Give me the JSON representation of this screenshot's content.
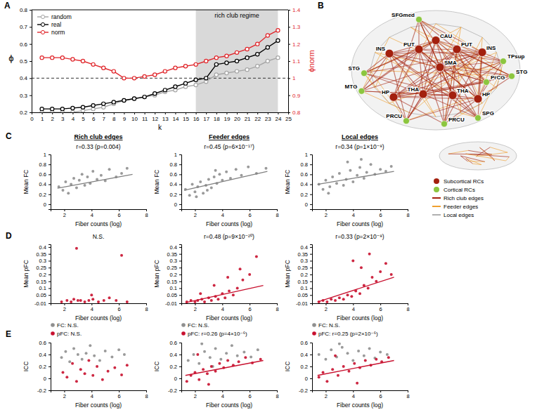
{
  "chart_data": [
    {
      "type": "line",
      "panel_label": "A",
      "xlabel": "k",
      "ylabel": "ϕ",
      "y2label": "ϕnorm",
      "xlim": [
        0,
        25
      ],
      "xticks": [
        0,
        1,
        2,
        3,
        4,
        5,
        6,
        7,
        8,
        9,
        10,
        11,
        12,
        13,
        14,
        15,
        16,
        17,
        18,
        19,
        20,
        21,
        22,
        23,
        24,
        25
      ],
      "ylim": [
        0.2,
        0.8
      ],
      "yticks": [
        0.2,
        0.3,
        0.4,
        0.5,
        0.6,
        0.7,
        0.8
      ],
      "y2lim": [
        0.8,
        1.4
      ],
      "y2ticks": [
        0.8,
        0.9,
        1,
        1.1,
        1.2,
        1.3,
        1.4
      ],
      "legend": "upper left",
      "x": [
        1,
        2,
        3,
        4,
        5,
        6,
        7,
        8,
        9,
        10,
        11,
        12,
        13,
        14,
        15,
        16,
        17,
        18,
        19,
        20,
        21,
        22,
        23,
        24
      ],
      "series": [
        {
          "name": "random",
          "color": "#a6a6a6",
          "marker": "circle",
          "values": [
            0.2,
            0.2,
            0.2,
            0.2,
            0.21,
            0.22,
            0.23,
            0.25,
            0.27,
            0.28,
            0.29,
            0.3,
            0.32,
            0.33,
            0.35,
            0.36,
            0.38,
            0.42,
            0.43,
            0.44,
            0.45,
            0.47,
            0.5,
            0.52
          ]
        },
        {
          "name": "real",
          "color": "#000000",
          "marker": "circle",
          "values": [
            0.22,
            0.22,
            0.22,
            0.225,
            0.23,
            0.24,
            0.25,
            0.26,
            0.27,
            0.28,
            0.29,
            0.31,
            0.33,
            0.35,
            0.37,
            0.39,
            0.4,
            0.48,
            0.49,
            0.5,
            0.52,
            0.54,
            0.58,
            0.62
          ]
        },
        {
          "name": "norm",
          "color": "#e0262b",
          "marker": "circle",
          "axis": "y2",
          "values": [
            1.12,
            1.12,
            1.12,
            1.11,
            1.1,
            1.08,
            1.06,
            1.04,
            1,
            1,
            1.01,
            1.02,
            1.04,
            1.06,
            1.07,
            1.08,
            1.1,
            1.12,
            1.13,
            1.15,
            1.17,
            1.2,
            1.25,
            1.28
          ]
        }
      ],
      "shaded_region": {
        "x": [
          16,
          24
        ],
        "label": "rich club regime"
      },
      "reference_line": {
        "axis": "y2",
        "value": 1,
        "line_style": "dashed"
      }
    },
    {
      "type": "network",
      "panel_label": "B",
      "nodes": [
        {
          "label": "SFGmed",
          "group": "cortical"
        },
        {
          "label": "CAU",
          "group": "subcortical"
        },
        {
          "label": "PUT",
          "group": "subcortical"
        },
        {
          "label": "PUT",
          "group": "subcortical"
        },
        {
          "label": "INS",
          "group": "subcortical"
        },
        {
          "label": "INS",
          "group": "subcortical"
        },
        {
          "label": "TPsup",
          "group": "cortical"
        },
        {
          "label": "STG",
          "group": "cortical"
        },
        {
          "label": "STG",
          "group": "cortical"
        },
        {
          "label": "SMA",
          "group": "subcortical"
        },
        {
          "label": "MTG",
          "group": "cortical"
        },
        {
          "label": "PrCG",
          "group": "cortical"
        },
        {
          "label": "HP",
          "group": "subcortical"
        },
        {
          "label": "THA",
          "group": "subcortical"
        },
        {
          "label": "THA",
          "group": "subcortical"
        },
        {
          "label": "HP",
          "group": "subcortical"
        },
        {
          "label": "SPG",
          "group": "cortical"
        },
        {
          "label": "PRCU",
          "group": "cortical"
        },
        {
          "label": "PRCU",
          "group": "cortical"
        }
      ],
      "legend_items": [
        {
          "label": "Subcortical RCs",
          "color": "#a3200e",
          "marker": "circle"
        },
        {
          "label": "Cortical RCs",
          "color": "#8cc63f",
          "marker": "circle"
        },
        {
          "label": "Rich club edges",
          "color": "#a3200e",
          "marker": "line"
        },
        {
          "label": "Feeder edges",
          "color": "#f0a030",
          "marker": "line"
        },
        {
          "label": "Local edges",
          "color": "#b0b0b0",
          "marker": "line"
        }
      ]
    },
    {
      "type": "scatter",
      "panel_label": "C",
      "title": "Rich club edges",
      "annotation": "r=0.33 (p=0.004)",
      "xlabel": "Fiber counts (log)",
      "ylabel": "Mean FC",
      "xlim": [
        1,
        8
      ],
      "xticks": [
        2,
        4,
        6,
        8
      ],
      "ylim": [
        -0.1,
        1
      ],
      "yticks": [
        0,
        0.2,
        0.4,
        0.6,
        0.8,
        1
      ],
      "series": [
        {
          "color": "#8f8f8f",
          "x": [
            1.6,
            1.9,
            2.1,
            2.3,
            2.5,
            2.7,
            2.9,
            3.1,
            3.3,
            3.5,
            3.7,
            3.9,
            4.1,
            4.4,
            4.7,
            5.0,
            5.3,
            5.8,
            6.2,
            6.6
          ],
          "values": [
            0.35,
            0.28,
            0.45,
            0.22,
            0.4,
            0.52,
            0.33,
            0.48,
            0.6,
            0.38,
            0.55,
            0.42,
            0.66,
            0.5,
            0.58,
            0.47,
            0.7,
            0.55,
            0.62,
            0.72
          ]
        }
      ],
      "fit_line": {
        "color": "#808080",
        "x": [
          1.5,
          7
        ],
        "values": [
          0.32,
          0.6
        ]
      }
    },
    {
      "type": "scatter",
      "title": "Feeder edges",
      "annotation": "r=0.45 (p=6×10⁻¹⁷)",
      "xlabel": "Fiber counts (log)",
      "ylabel": "Mean FC",
      "xlim": [
        1,
        8
      ],
      "xticks": [
        2,
        4,
        6,
        8
      ],
      "ylim": [
        -0.1,
        1
      ],
      "yticks": [
        0,
        0.2,
        0.4,
        0.6,
        0.8,
        1
      ],
      "series": [
        {
          "color": "#8f8f8f",
          "x": [
            1.3,
            1.6,
            1.8,
            2.0,
            2.2,
            2.4,
            2.6,
            2.8,
            3.0,
            3.2,
            3.4,
            3.6,
            3.8,
            4.0,
            4.3,
            4.6,
            5.0,
            5.4,
            5.9,
            6.5,
            7.2,
            2.1,
            2.9,
            3.5
          ],
          "values": [
            0.3,
            0.18,
            0.4,
            0.25,
            0.35,
            0.45,
            0.22,
            0.38,
            0.5,
            0.33,
            0.55,
            0.42,
            0.6,
            0.48,
            0.65,
            0.52,
            0.7,
            0.58,
            0.75,
            0.62,
            0.72,
            0.15,
            0.28,
            0.68
          ]
        }
      ],
      "fit_line": {
        "color": "#808080",
        "x": [
          1.2,
          7.3
        ],
        "values": [
          0.28,
          0.66
        ]
      }
    },
    {
      "type": "scatter",
      "title": "Local edges",
      "annotation": "r=0.34 (p=1×10⁻⁸)",
      "xlabel": "Fiber counts (log)",
      "ylabel": "Mean FC",
      "xlim": [
        1,
        8
      ],
      "xticks": [
        2,
        4,
        6,
        8
      ],
      "ylim": [
        -0.1,
        1
      ],
      "yticks": [
        0,
        0.2,
        0.4,
        0.6,
        0.8,
        1
      ],
      "series": [
        {
          "color": "#8f8f8f",
          "x": [
            1.5,
            1.8,
            2.0,
            2.3,
            2.5,
            2.8,
            3.0,
            3.3,
            3.5,
            3.8,
            4.0,
            4.3,
            4.5,
            4.8,
            5.0,
            5.3,
            5.6,
            6.0,
            6.4,
            6.8,
            2.2,
            3.6,
            4.6
          ],
          "values": [
            0.4,
            0.3,
            0.48,
            0.35,
            0.55,
            0.42,
            0.62,
            0.38,
            0.5,
            0.68,
            0.45,
            0.58,
            0.74,
            0.52,
            0.64,
            0.8,
            0.6,
            0.7,
            0.66,
            0.76,
            0.22,
            0.85,
            0.9
          ]
        }
      ],
      "fit_line": {
        "color": "#808080",
        "x": [
          1.4,
          7
        ],
        "values": [
          0.4,
          0.66
        ]
      }
    },
    {
      "type": "scatter",
      "panel_label": "D",
      "annotation": "N.S.",
      "xlabel": "Fiber counts (log)",
      "ylabel": "Mean pFC",
      "xlim": [
        1,
        8
      ],
      "xticks": [
        2,
        4,
        6,
        8
      ],
      "ylim": [
        -0.01,
        0.42
      ],
      "yticks": [
        -0.01,
        0.05,
        0.1,
        0.15,
        0.2,
        0.25,
        0.3,
        0.35,
        0.4
      ],
      "series": [
        {
          "color": "#c8102e",
          "x": [
            1.8,
            2.2,
            2.5,
            2.9,
            3.2,
            3.5,
            3.8,
            4.1,
            4.5,
            4.9,
            5.3,
            5.8,
            6.2,
            6.6,
            2.7,
            3.0,
            4.0
          ],
          "values": [
            0,
            0.01,
            0,
            0.39,
            0.01,
            0,
            0.01,
            0.02,
            0,
            0.01,
            0.03,
            0.01,
            0.34,
            0,
            0.02,
            0.01,
            0.05
          ]
        }
      ]
    },
    {
      "type": "scatter",
      "annotation": "r=0.48 (p=9×10⁻²⁰)",
      "xlabel": "Fiber counts (log)",
      "ylabel": "Mean pFC",
      "xlim": [
        1,
        8
      ],
      "xticks": [
        2,
        4,
        6,
        8
      ],
      "ylim": [
        -0.01,
        0.42
      ],
      "yticks": [
        -0.01,
        0.05,
        0.1,
        0.15,
        0.2,
        0.25,
        0.3,
        0.35,
        0.4
      ],
      "series": [
        {
          "color": "#c8102e",
          "x": [
            1.4,
            1.7,
            2.0,
            2.2,
            2.5,
            2.7,
            3.0,
            3.2,
            3.5,
            3.7,
            4.0,
            4.2,
            4.5,
            4.8,
            5.1,
            5.5,
            6.0,
            6.5,
            2.4,
            3.4,
            4.4,
            5.3
          ],
          "values": [
            0,
            0.01,
            0,
            0.01,
            0.02,
            0,
            0.03,
            0.01,
            0.04,
            0.02,
            0.06,
            0.03,
            0.08,
            0.05,
            0.1,
            0.16,
            0.2,
            0.33,
            0.06,
            0.12,
            0.18,
            0.24
          ]
        }
      ],
      "fit_line": {
        "color": "#c8102e",
        "x": [
          1.3,
          7
        ],
        "values": [
          -0.005,
          0.12
        ]
      }
    },
    {
      "type": "scatter",
      "annotation": "r=0.33 (p=2×10⁻⁸)",
      "xlabel": "Fiber counts (log)",
      "ylabel": "Mean pFC",
      "xlim": [
        1,
        8
      ],
      "xticks": [
        2,
        4,
        6,
        8
      ],
      "ylim": [
        -0.01,
        0.42
      ],
      "yticks": [
        -0.01,
        0.05,
        0.1,
        0.15,
        0.2,
        0.25,
        0.3,
        0.35,
        0.4
      ],
      "series": [
        {
          "color": "#c8102e",
          "x": [
            1.5,
            1.8,
            2.1,
            2.4,
            2.7,
            3.0,
            3.3,
            3.6,
            3.9,
            4.2,
            4.5,
            4.8,
            5.1,
            5.4,
            5.7,
            6.0,
            6.4,
            6.8,
            4.0,
            4.6,
            5.2
          ],
          "values": [
            0,
            0.01,
            0,
            0.02,
            0.01,
            0.03,
            0.02,
            0.05,
            0.04,
            0.08,
            0.06,
            0.12,
            0.1,
            0.18,
            0.15,
            0.22,
            0.28,
            0.2,
            0.3,
            0.25,
            0.35
          ]
        }
      ],
      "fit_line": {
        "color": "#c8102e",
        "x": [
          1.4,
          7
        ],
        "values": [
          0,
          0.18
        ]
      }
    },
    {
      "type": "scatter",
      "panel_label": "E",
      "legend": "top",
      "xlabel": "Fiber counts (log)",
      "ylabel": "ICC",
      "xlim": [
        1,
        8
      ],
      "xticks": [
        2,
        4,
        6,
        8
      ],
      "ylim": [
        -0.2,
        0.6
      ],
      "yticks": [
        -0.2,
        0,
        0.2,
        0.4,
        0.6
      ],
      "series": [
        {
          "name": "FC: N.S.",
          "color": "#8f8f8f",
          "x": [
            1.8,
            2.1,
            2.4,
            2.7,
            3.0,
            3.3,
            3.6,
            3.9,
            4.2,
            4.6,
            5.0,
            5.5,
            6.0,
            6.4
          ],
          "values": [
            0.35,
            0.45,
            0.28,
            0.5,
            0.4,
            0.32,
            0.42,
            0.55,
            0.38,
            0.3,
            0.46,
            0.36,
            0.48,
            0.4
          ]
        },
        {
          "name": "pFC: N.S.",
          "color": "#c8102e",
          "x": [
            1.9,
            2.2,
            2.6,
            2.9,
            3.2,
            3.5,
            3.8,
            4.1,
            4.4,
            4.8,
            5.2,
            5.7,
            6.2,
            6.6
          ],
          "values": [
            0.1,
            0.02,
            0.25,
            -0.05,
            0.15,
            0.08,
            0.3,
            0.05,
            0.2,
            -0.02,
            0.12,
            0.18,
            0.06,
            0.22
          ]
        }
      ]
    },
    {
      "type": "scatter",
      "legend": "top",
      "xlabel": "Fiber counts (log)",
      "ylabel": "ICC",
      "xlim": [
        1,
        8
      ],
      "xticks": [
        2,
        4,
        6,
        8
      ],
      "ylim": [
        -0.2,
        0.6
      ],
      "yticks": [
        -0.2,
        0,
        0.2,
        0.4,
        0.6
      ],
      "series": [
        {
          "name": "FC: N.S.",
          "color": "#8f8f8f",
          "x": [
            1.5,
            1.9,
            2.3,
            2.7,
            3.1,
            3.5,
            3.9,
            4.3,
            4.7,
            5.1,
            5.6,
            6.1,
            6.6,
            2.5,
            3.3
          ],
          "values": [
            0.3,
            0.4,
            0.25,
            0.45,
            0.35,
            0.5,
            0.32,
            0.42,
            0.55,
            0.38,
            0.44,
            0.36,
            0.48,
            0.58,
            0.2
          ]
        },
        {
          "name": "pFC: r=0.26 (p=4×10⁻⁶)",
          "color": "#c8102e",
          "x": [
            1.4,
            1.7,
            2.0,
            2.3,
            2.6,
            2.9,
            3.2,
            3.5,
            3.8,
            4.1,
            4.4,
            4.8,
            5.2,
            5.7,
            6.2,
            6.8,
            2.2,
            3.0
          ],
          "values": [
            -0.05,
            0.05,
            0.1,
            -0.02,
            0.15,
            0.08,
            0.2,
            0.12,
            0.25,
            0.18,
            0.3,
            0.22,
            0.28,
            0.35,
            0.26,
            0.32,
            0.4,
            -0.1
          ]
        }
      ],
      "fit_line": {
        "color": "#c8102e",
        "x": [
          1.3,
          7
        ],
        "values": [
          0.05,
          0.3
        ]
      }
    },
    {
      "type": "scatter",
      "legend": "top",
      "xlabel": "Fiber counts (log)",
      "ylabel": "ICC",
      "xlim": [
        1,
        8
      ],
      "xticks": [
        2,
        4,
        6,
        8
      ],
      "ylim": [
        -0.2,
        0.6
      ],
      "yticks": [
        -0.2,
        0,
        0.2,
        0.4,
        0.6
      ],
      "series": [
        {
          "name": "FC: N.S.",
          "color": "#8f8f8f",
          "x": [
            1.5,
            2.0,
            2.4,
            2.8,
            3.2,
            3.6,
            4.0,
            4.4,
            4.8,
            5.2,
            5.6,
            6.0,
            6.5,
            3.0
          ],
          "values": [
            0.4,
            0.32,
            0.48,
            0.36,
            0.52,
            0.42,
            0.3,
            0.46,
            0.38,
            0.5,
            0.34,
            0.44,
            0.4,
            0.58
          ]
        },
        {
          "name": "pFC: r=0.25 (p=2×10⁻⁶)",
          "color": "#c8102e",
          "x": [
            1.5,
            1.8,
            2.1,
            2.5,
            2.9,
            3.3,
            3.7,
            4.1,
            4.5,
            4.9,
            5.3,
            5.7,
            6.1,
            6.6,
            2.7,
            4.3
          ],
          "values": [
            0.02,
            0.1,
            -0.05,
            0.15,
            0.05,
            0.2,
            0.12,
            0.25,
            0.18,
            0.3,
            0.22,
            0.32,
            0.28,
            0.35,
            0.38,
            -0.08
          ]
        }
      ],
      "fit_line": {
        "color": "#c8102e",
        "x": [
          1.4,
          7
        ],
        "values": [
          0.05,
          0.3
        ]
      }
    }
  ]
}
